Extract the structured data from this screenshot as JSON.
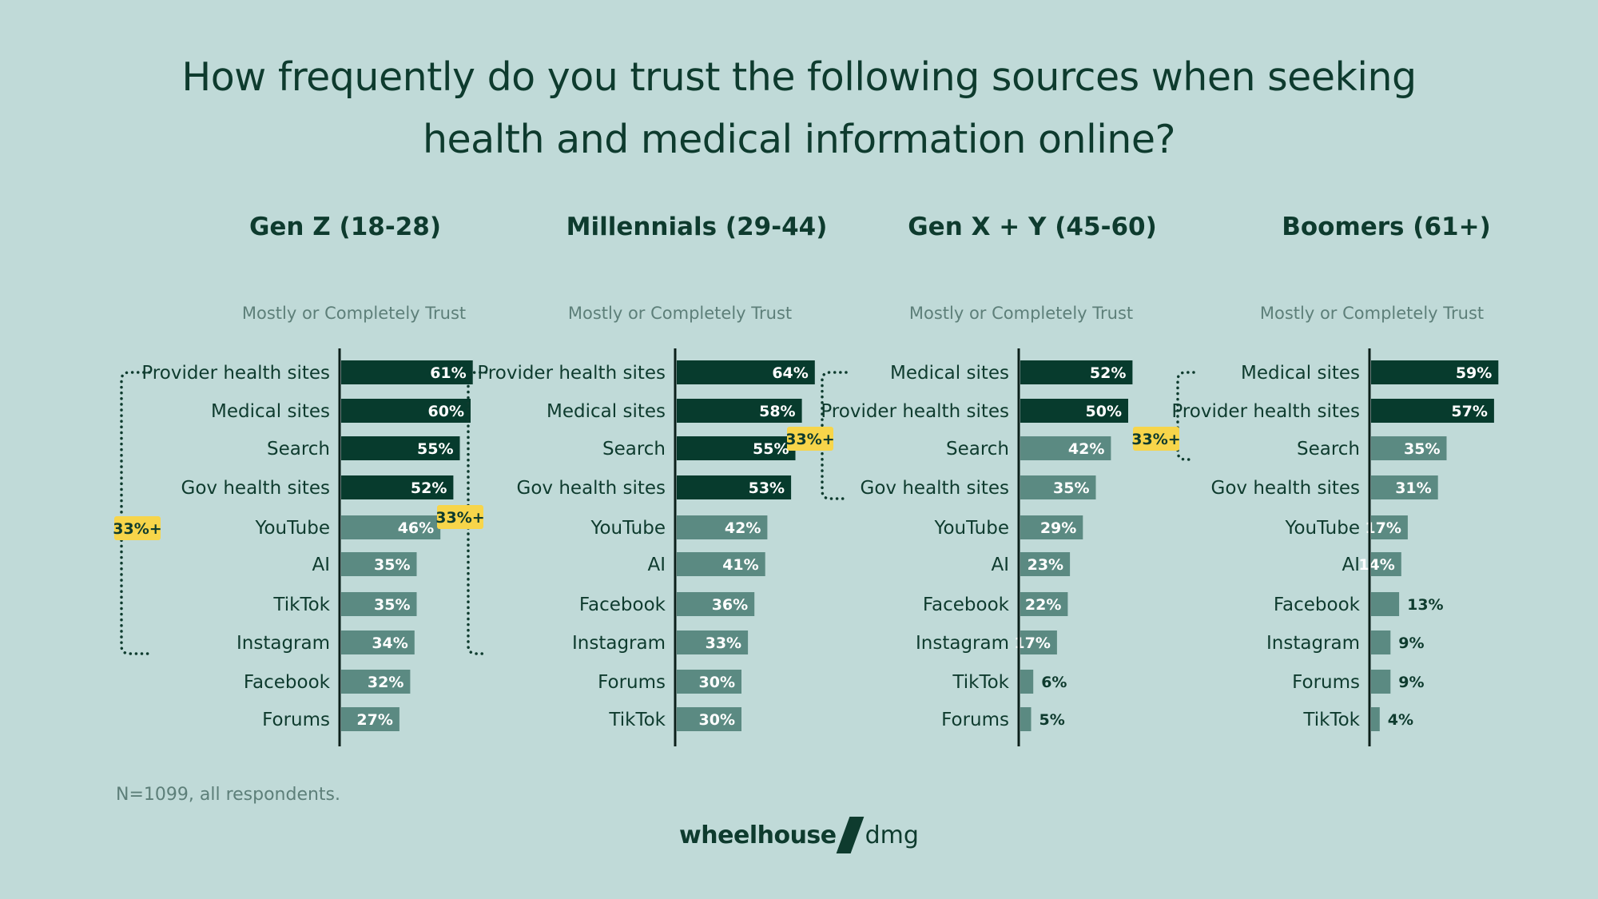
{
  "title": "How frequently do you trust the following sources when seeking health and medical information online?",
  "footnote": "N=1099, all respondents.",
  "brand": {
    "name": "wheelhouse",
    "suffix": "dmg"
  },
  "colors": {
    "background": "#c0dad8",
    "dark_bar": "#073b2d",
    "light_bar": "#5b8a82",
    "text": "#0e3b2e",
    "muted_text": "#5d7f79",
    "highlight_badge": "#f7d54a"
  },
  "chart_data": [
    {
      "type": "bar",
      "title": "Gen Z (18-28)",
      "subtitle": "Mostly or Completely Trust",
      "categories": [
        "Provider health sites",
        "Medical sites",
        "Search",
        "Gov health sites",
        "YouTube",
        "AI",
        "TikTok",
        "Instagram",
        "Facebook",
        "Forums"
      ],
      "values": [
        61,
        60,
        55,
        52,
        46,
        35,
        35,
        34,
        32,
        27
      ],
      "labels": [
        "61%",
        "60%",
        "55%",
        "52%",
        "46%",
        "35%",
        "35%",
        "34%",
        "32%",
        "27%"
      ],
      "highlight": [
        true,
        true,
        true,
        true,
        false,
        false,
        false,
        false,
        false,
        false
      ],
      "bracket": {
        "label": "33%+",
        "from": "Provider health sites",
        "to": "Instagram"
      }
    },
    {
      "type": "bar",
      "title": "Millennials (29-44)",
      "subtitle": "Mostly or Completely Trust",
      "categories": [
        "Provider health sites",
        "Medical sites",
        "Search",
        "Gov health sites",
        "YouTube",
        "AI",
        "Facebook",
        "Instagram",
        "Forums",
        "TikTok"
      ],
      "values": [
        64,
        58,
        55,
        53,
        42,
        41,
        36,
        33,
        30,
        30
      ],
      "labels": [
        "64%",
        "58%",
        "55%",
        "53%",
        "42%",
        "41%",
        "36%",
        "33%",
        "30%",
        "30%"
      ],
      "highlight": [
        true,
        true,
        true,
        true,
        false,
        false,
        false,
        false,
        false,
        false
      ],
      "bracket": {
        "label": "33%+",
        "from": "Provider health sites",
        "to": "Instagram"
      }
    },
    {
      "type": "bar",
      "title": "Gen X + Y (45-60)",
      "subtitle": "Mostly or Completely Trust",
      "categories": [
        "Medical sites",
        "Provider health sites",
        "Search",
        "Gov health sites",
        "YouTube",
        "AI",
        "Facebook",
        "Instagram",
        "TikTok",
        "Forums"
      ],
      "values": [
        52,
        50,
        42,
        35,
        29,
        23,
        22,
        17,
        6,
        5
      ],
      "labels": [
        "52%",
        "50%",
        "42%",
        "35%",
        "29%",
        "23%",
        "22%",
        "17%",
        "6%",
        "5%"
      ],
      "highlight": [
        true,
        true,
        false,
        false,
        false,
        false,
        false,
        false,
        false,
        false
      ],
      "bracket": {
        "label": "33%+",
        "from": "Medical sites",
        "to": "Gov health sites"
      }
    },
    {
      "type": "bar",
      "title": "Boomers (61+)",
      "subtitle": "Mostly or Completely Trust",
      "categories": [
        "Medical sites",
        "Provider health sites",
        "Search",
        "Gov health sites",
        "YouTube",
        "AI",
        "Facebook",
        "Instagram",
        "Forums",
        "TikTok"
      ],
      "values": [
        59,
        57,
        35,
        31,
        17,
        14,
        13,
        9,
        9,
        4
      ],
      "labels": [
        "59%",
        "57%",
        "35%",
        "31%",
        "17%",
        "14%",
        "13%",
        "9%",
        "9%",
        "4%"
      ],
      "highlight": [
        true,
        true,
        false,
        false,
        false,
        false,
        false,
        false,
        false,
        false
      ],
      "bracket": {
        "label": "33%+",
        "from": "Medical sites",
        "to": "Search"
      }
    }
  ]
}
